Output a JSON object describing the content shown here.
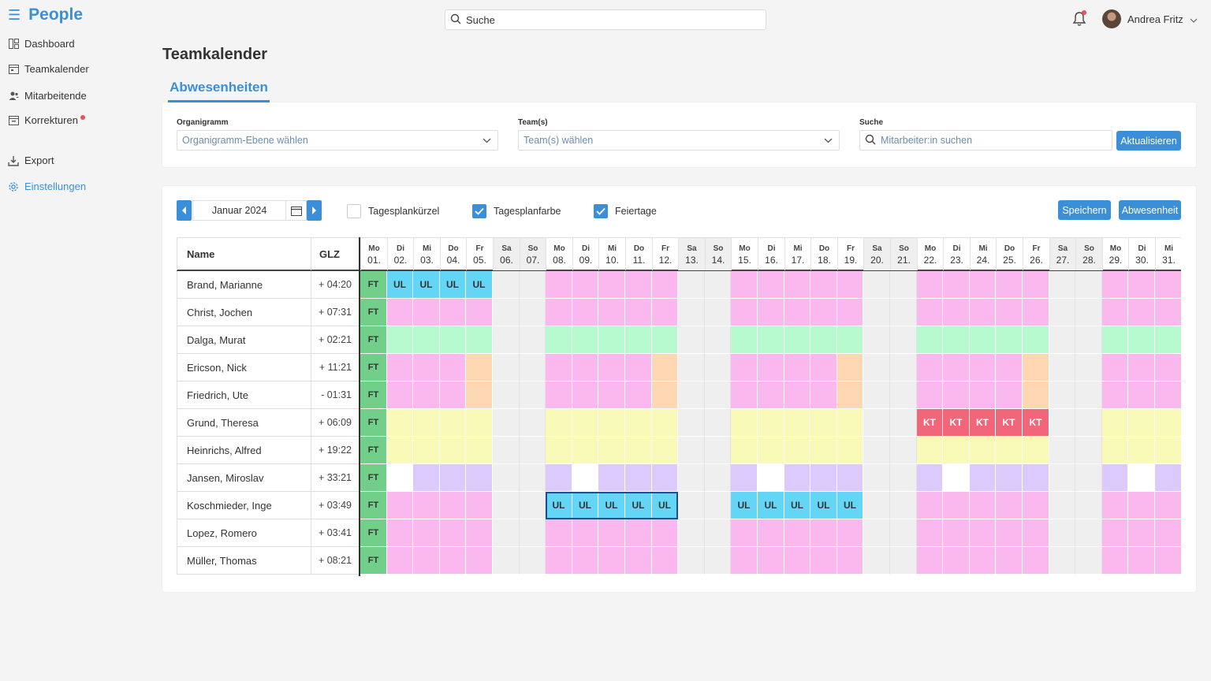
{
  "app": {
    "title": "People"
  },
  "nav": [
    {
      "label": "Dashboard",
      "icon": "dashboard-icon"
    },
    {
      "label": "Teamkalender",
      "icon": "calendar-icon"
    },
    {
      "label": "Mitarbeitende",
      "icon": "users-icon"
    },
    {
      "label": "Korrekturen",
      "icon": "corrections-icon",
      "badge": true
    },
    {
      "label": "Export",
      "icon": "download-icon"
    },
    {
      "label": "Einstellungen",
      "icon": "gear-icon",
      "active": true
    }
  ],
  "topbar": {
    "search_placeholder": "Suche",
    "user_name": "Andrea Fritz"
  },
  "page": {
    "title": "Teamkalender",
    "tab": "Abwesenheiten"
  },
  "filters": {
    "org_label": "Organigramm",
    "org_placeholder": "Organigramm-Ebene wählen",
    "team_label": "Team(s)",
    "team_placeholder": "Team(s) wählen",
    "search_label": "Suche",
    "search_placeholder": "Mitarbeiter:in suchen",
    "refresh_button": "Aktualisieren"
  },
  "calendar": {
    "month": "Januar 2024",
    "options": [
      {
        "label": "Tagesplankürzel",
        "checked": false
      },
      {
        "label": "Tagesplanfarbe",
        "checked": true
      },
      {
        "label": "Feiertage",
        "checked": true
      }
    ],
    "save_button": "Speichern",
    "absence_button": "Abwesenheit",
    "col_name": "Name",
    "col_glz": "GLZ",
    "days": [
      [
        "Mo",
        "01."
      ],
      [
        "Di",
        "02."
      ],
      [
        "Mi",
        "03."
      ],
      [
        "Do",
        "04."
      ],
      [
        "Fr",
        "05."
      ],
      [
        "Sa",
        "06."
      ],
      [
        "So",
        "07."
      ],
      [
        "Mo",
        "08."
      ],
      [
        "Di",
        "09."
      ],
      [
        "Mi",
        "10."
      ],
      [
        "Do",
        "11."
      ],
      [
        "Fr",
        "12."
      ],
      [
        "Sa",
        "13."
      ],
      [
        "So",
        "14."
      ],
      [
        "Mo",
        "15."
      ],
      [
        "Di",
        "16."
      ],
      [
        "Mi",
        "17."
      ],
      [
        "Do",
        "18."
      ],
      [
        "Fr",
        "19."
      ],
      [
        "Sa",
        "20."
      ],
      [
        "So",
        "21."
      ],
      [
        "Mo",
        "22."
      ],
      [
        "Di",
        "23."
      ],
      [
        "Mi",
        "24."
      ],
      [
        "Do",
        "25."
      ],
      [
        "Fr",
        "26."
      ],
      [
        "Sa",
        "27."
      ],
      [
        "So",
        "28."
      ],
      [
        "Mo",
        "29."
      ],
      [
        "Di",
        "30."
      ],
      [
        "Mi",
        "31."
      ]
    ],
    "colors": {
      "P": "#fbb8ee",
      "G": "#b8fad0",
      "O": "#fdd6b2",
      "Y": "#fafab8",
      "V": "#dccafd",
      "W": "#ffffff",
      "B": "#63d6f5",
      "K": "#f2667a",
      "F": "#72cf8a",
      "E": "#efefef"
    },
    "codes": {
      "FT": "FT",
      "UL": "UL",
      "KT": "KT"
    },
    "employees": [
      {
        "name": "Brand, Marianne",
        "glz": "+ 04:20",
        "base": "PPPPPEEPPPPPEEPPPPPEEPPPPPEEPPP",
        "over": {
          "1": "UL",
          "2": "UL",
          "3": "UL",
          "4": "UL"
        }
      },
      {
        "name": "Christ, Jochen",
        "glz": "+ 07:31",
        "base": "PPPPPEEPPPPPEEPPPPPEEPPPPPEEPPP",
        "over": {}
      },
      {
        "name": "Dalga, Murat",
        "glz": "+ 02:21",
        "base": "GGGGGEEGGGGGEEGGGGGEEGGGGGEEGGG",
        "over": {}
      },
      {
        "name": "Ericson, Nick",
        "glz": "+ 11:21",
        "base": "PPPPOEEPPPPOEEPPPPOEEPPPPOEEPPP",
        "over": {}
      },
      {
        "name": "Friedrich, Ute",
        "glz": "- 01:31",
        "base": "PPPPOEEPPPPOEEPPPPOEEPPPPOEEPPP",
        "over": {}
      },
      {
        "name": "Grund, Theresa",
        "glz": "+ 06:09",
        "base": "YYYYYEEYYYYYEEYYYYYEEYYYYYEEYYY",
        "over": {
          "21": "KT",
          "22": "KT",
          "23": "KT",
          "24": "KT",
          "25": "KT"
        }
      },
      {
        "name": "Heinrichs, Alfred",
        "glz": "+ 19:22",
        "base": "YYYYYEEYYYYYEEYYYYYEEYYYYYEEYYY",
        "over": {}
      },
      {
        "name": "Jansen, Miroslav",
        "glz": "+ 33:21",
        "base": "VWVVVEEVWVVVEEVWVVVEEVWVVVEEVWV",
        "over": {}
      },
      {
        "name": "Koschmieder, Inge",
        "glz": "+ 03:49",
        "base": "PPPPPEEPPPPPEEPPPPPEEPPPPPEEPPP",
        "over": {
          "7": "UL",
          "8": "UL",
          "9": "UL",
          "10": "UL",
          "11": "UL",
          "14": "UL",
          "15": "UL",
          "16": "UL",
          "17": "UL",
          "18": "UL"
        }
      },
      {
        "name": "Lopez, Romero",
        "glz": "+ 03:41",
        "base": "PPPPPEEPPPPPEEPPPPPEEPPPPPEEPPP",
        "over": {}
      },
      {
        "name": "Müller, Thomas",
        "glz": "+ 08:21",
        "base": "PPPPPEEPPPPPEEPPPPPEEPPPPPEEPPP",
        "over": {}
      }
    ]
  }
}
